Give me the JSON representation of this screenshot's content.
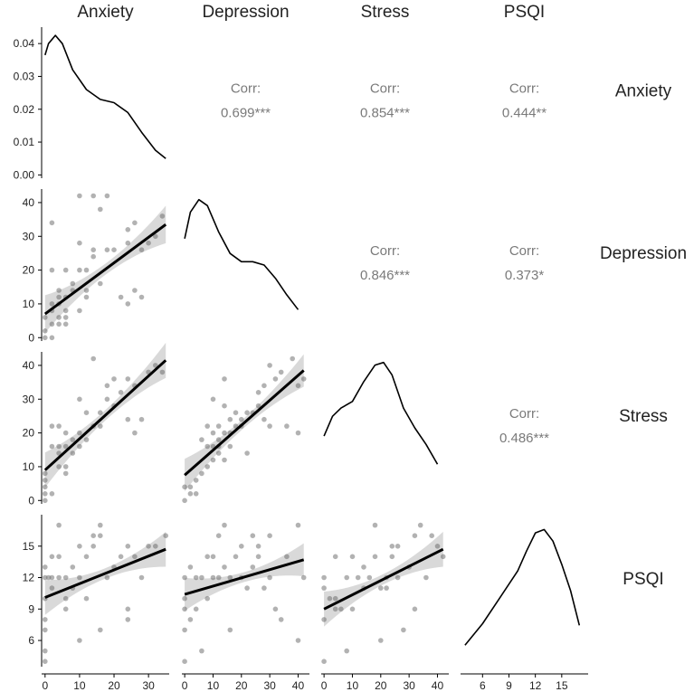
{
  "chart_data": {
    "type": "scatter-matrix",
    "variables": [
      "Anxiety",
      "Depression",
      "Stress",
      "PSQI"
    ],
    "axes": {
      "Anxiety": {
        "range": [
          -1,
          36
        ],
        "ticks": [
          0,
          10,
          20,
          30
        ]
      },
      "Depression": {
        "range": [
          -1,
          44
        ],
        "ticks": [
          0,
          10,
          20,
          30,
          40
        ],
        "tickLabels": [
          "0",
          "10",
          "20",
          "30",
          "40"
        ]
      },
      "Stress": {
        "range": [
          -1,
          44
        ],
        "ticks": [
          0,
          10,
          20,
          30,
          40
        ],
        "tickLabels": [
          "0",
          "10",
          "20",
          "30",
          "40"
        ]
      },
      "PSQI": {
        "range": [
          3.5,
          18
        ],
        "ticks": [
          6,
          9,
          12,
          15
        ],
        "tickLabels": [
          "6",
          "9",
          "12",
          "15"
        ]
      }
    },
    "density_axis": {
      "range": [
        -0.001,
        0.045
      ],
      "ticks": [
        0.0,
        0.01,
        0.02,
        0.03,
        0.04
      ],
      "tickLabels": [
        "0.00",
        "0.01",
        "0.02",
        "0.03",
        "0.04"
      ]
    },
    "densities": {
      "Anxiety": [
        [
          0,
          0.0365
        ],
        [
          1,
          0.04
        ],
        [
          3,
          0.0425
        ],
        [
          5,
          0.04
        ],
        [
          8,
          0.032
        ],
        [
          12,
          0.026
        ],
        [
          16,
          0.023
        ],
        [
          20,
          0.022
        ],
        [
          24,
          0.019
        ],
        [
          28,
          0.013
        ],
        [
          32,
          0.0075
        ],
        [
          35,
          0.005
        ]
      ],
      "Depression": [
        [
          0,
          0.03
        ],
        [
          2,
          0.038
        ],
        [
          5,
          0.0418
        ],
        [
          8,
          0.04
        ],
        [
          12,
          0.032
        ],
        [
          16,
          0.0255
        ],
        [
          20,
          0.023
        ],
        [
          24,
          0.023
        ],
        [
          28,
          0.022
        ],
        [
          32,
          0.018
        ],
        [
          36,
          0.013
        ],
        [
          40,
          0.0085
        ]
      ],
      "Stress": [
        [
          0,
          0.0195
        ],
        [
          3,
          0.0255
        ],
        [
          6,
          0.028
        ],
        [
          10,
          0.03
        ],
        [
          14,
          0.036
        ],
        [
          18,
          0.041
        ],
        [
          21,
          0.0418
        ],
        [
          24,
          0.038
        ],
        [
          28,
          0.028
        ],
        [
          32,
          0.022
        ],
        [
          36,
          0.017
        ],
        [
          40,
          0.011
        ]
      ],
      "PSQI": [
        [
          4,
          0.0055
        ],
        [
          6,
          0.012
        ],
        [
          8,
          0.02
        ],
        [
          10,
          0.028
        ],
        [
          11,
          0.034
        ],
        [
          12,
          0.0395
        ],
        [
          13,
          0.0405
        ],
        [
          14,
          0.037
        ],
        [
          15,
          0.03
        ],
        [
          16,
          0.022
        ],
        [
          17,
          0.0115
        ]
      ]
    },
    "correlations": [
      {
        "row": "Anxiety",
        "col": "Depression",
        "label": "Corr:",
        "value": "0.699***"
      },
      {
        "row": "Anxiety",
        "col": "Stress",
        "label": "Corr:",
        "value": "0.854***"
      },
      {
        "row": "Anxiety",
        "col": "PSQI",
        "label": "Corr:",
        "value": "0.444**"
      },
      {
        "row": "Depression",
        "col": "Stress",
        "label": "Corr:",
        "value": "0.846***"
      },
      {
        "row": "Depression",
        "col": "PSQI",
        "label": "Corr:",
        "value": "0.373*"
      },
      {
        "row": "Stress",
        "col": "PSQI",
        "label": "Corr:",
        "value": "0.486***"
      }
    ],
    "regressions": [
      {
        "row": "Depression",
        "col": "Anxiety",
        "x0": 0,
        "y0": 7,
        "x1": 35,
        "y1": 33.5,
        "se": 3
      },
      {
        "row": "Stress",
        "col": "Anxiety",
        "x0": 0,
        "y0": 9,
        "x1": 35,
        "y1": 41.5,
        "se": 2.8
      },
      {
        "row": "Stress",
        "col": "Depression",
        "x0": 0,
        "y0": 7.5,
        "x1": 42,
        "y1": 38.5,
        "se": 2.6
      },
      {
        "row": "PSQI",
        "col": "Anxiety",
        "x0": 0,
        "y0": 10.1,
        "x1": 35,
        "y1": 14.7,
        "se": 0.9
      },
      {
        "row": "PSQI",
        "col": "Depression",
        "x0": 0,
        "y0": 10.4,
        "x1": 42,
        "y1": 13.7,
        "se": 0.85
      },
      {
        "row": "PSQI",
        "col": "Stress",
        "x0": 0,
        "y0": 9.0,
        "x1": 42,
        "y1": 14.7,
        "se": 0.9
      }
    ],
    "points": {
      "Anxiety_Depression": [
        [
          0,
          0
        ],
        [
          0,
          2
        ],
        [
          0,
          6
        ],
        [
          2,
          0
        ],
        [
          2,
          4
        ],
        [
          2,
          8
        ],
        [
          2,
          10
        ],
        [
          2,
          34
        ],
        [
          4,
          4
        ],
        [
          4,
          6
        ],
        [
          4,
          10
        ],
        [
          4,
          12
        ],
        [
          4,
          14
        ],
        [
          6,
          4
        ],
        [
          6,
          6
        ],
        [
          6,
          8
        ],
        [
          6,
          12
        ],
        [
          8,
          14
        ],
        [
          8,
          16
        ],
        [
          10,
          8
        ],
        [
          10,
          20
        ],
        [
          10,
          28
        ],
        [
          10,
          42
        ],
        [
          12,
          12
        ],
        [
          12,
          14
        ],
        [
          14,
          24
        ],
        [
          14,
          26
        ],
        [
          14,
          42
        ],
        [
          16,
          16
        ],
        [
          16,
          38
        ],
        [
          18,
          26
        ],
        [
          18,
          42
        ],
        [
          20,
          26
        ],
        [
          22,
          12
        ],
        [
          24,
          10
        ],
        [
          24,
          28
        ],
        [
          24,
          32
        ],
        [
          26,
          14
        ],
        [
          26,
          34
        ],
        [
          28,
          26
        ],
        [
          28,
          12
        ],
        [
          30,
          28
        ],
        [
          32,
          30
        ],
        [
          34,
          36
        ],
        [
          6,
          20
        ],
        [
          2,
          20
        ],
        [
          12,
          20
        ]
      ],
      "Anxiety_Stress": [
        [
          0,
          0
        ],
        [
          0,
          2
        ],
        [
          0,
          4
        ],
        [
          0,
          6
        ],
        [
          0,
          8
        ],
        [
          2,
          2
        ],
        [
          2,
          16
        ],
        [
          2,
          22
        ],
        [
          4,
          10
        ],
        [
          4,
          14
        ],
        [
          4,
          16
        ],
        [
          4,
          22
        ],
        [
          6,
          8
        ],
        [
          6,
          10
        ],
        [
          6,
          16
        ],
        [
          6,
          20
        ],
        [
          8,
          14
        ],
        [
          8,
          18
        ],
        [
          10,
          16
        ],
        [
          10,
          20
        ],
        [
          12,
          18
        ],
        [
          12,
          26
        ],
        [
          14,
          22
        ],
        [
          14,
          42
        ],
        [
          16,
          22
        ],
        [
          16,
          26
        ],
        [
          18,
          30
        ],
        [
          18,
          34
        ],
        [
          20,
          28
        ],
        [
          22,
          32
        ],
        [
          24,
          24
        ],
        [
          24,
          36
        ],
        [
          26,
          20
        ],
        [
          26,
          34
        ],
        [
          28,
          24
        ],
        [
          30,
          38
        ],
        [
          32,
          40
        ],
        [
          34,
          38
        ],
        [
          10,
          30
        ],
        [
          20,
          36
        ]
      ],
      "Depression_Stress": [
        [
          0,
          0
        ],
        [
          0,
          4
        ],
        [
          2,
          2
        ],
        [
          2,
          4
        ],
        [
          4,
          2
        ],
        [
          4,
          6
        ],
        [
          6,
          8
        ],
        [
          6,
          18
        ],
        [
          8,
          10
        ],
        [
          8,
          16
        ],
        [
          8,
          22
        ],
        [
          10,
          12
        ],
        [
          10,
          16
        ],
        [
          10,
          20
        ],
        [
          10,
          30
        ],
        [
          12,
          14
        ],
        [
          12,
          16
        ],
        [
          12,
          18
        ],
        [
          12,
          22
        ],
        [
          14,
          20
        ],
        [
          14,
          28
        ],
        [
          14,
          36
        ],
        [
          16,
          16
        ],
        [
          16,
          20
        ],
        [
          16,
          24
        ],
        [
          18,
          22
        ],
        [
          18,
          26
        ],
        [
          20,
          22
        ],
        [
          20,
          24
        ],
        [
          22,
          26
        ],
        [
          24,
          26
        ],
        [
          26,
          28
        ],
        [
          26,
          32
        ],
        [
          28,
          24
        ],
        [
          28,
          34
        ],
        [
          30,
          22
        ],
        [
          30,
          40
        ],
        [
          32,
          36
        ],
        [
          34,
          38
        ],
        [
          36,
          22
        ],
        [
          38,
          42
        ],
        [
          40,
          20
        ],
        [
          40,
          34
        ],
        [
          42,
          36
        ],
        [
          14,
          12
        ],
        [
          22,
          14
        ]
      ],
      "Anxiety_PSQI": [
        [
          0,
          4
        ],
        [
          0,
          5
        ],
        [
          0,
          7
        ],
        [
          0,
          8
        ],
        [
          0,
          10
        ],
        [
          0,
          12
        ],
        [
          0,
          13
        ],
        [
          1,
          12
        ],
        [
          2,
          11
        ],
        [
          2,
          12
        ],
        [
          2,
          14
        ],
        [
          4,
          14
        ],
        [
          4,
          17
        ],
        [
          4,
          12
        ],
        [
          6,
          9
        ],
        [
          6,
          10
        ],
        [
          6,
          12
        ],
        [
          8,
          11
        ],
        [
          8,
          13
        ],
        [
          10,
          6
        ],
        [
          10,
          12
        ],
        [
          12,
          10
        ],
        [
          12,
          14
        ],
        [
          14,
          16
        ],
        [
          14,
          15
        ],
        [
          16,
          7
        ],
        [
          16,
          16
        ],
        [
          16,
          17
        ],
        [
          18,
          12
        ],
        [
          20,
          13
        ],
        [
          22,
          14
        ],
        [
          24,
          8
        ],
        [
          24,
          9
        ],
        [
          24,
          15
        ],
        [
          26,
          14
        ],
        [
          28,
          12
        ],
        [
          30,
          15
        ],
        [
          32,
          15
        ],
        [
          35,
          16
        ],
        [
          10,
          15
        ]
      ],
      "Depression_PSQI": [
        [
          0,
          4
        ],
        [
          0,
          7
        ],
        [
          0,
          9
        ],
        [
          0,
          10
        ],
        [
          0,
          12
        ],
        [
          2,
          8
        ],
        [
          2,
          13
        ],
        [
          4,
          9
        ],
        [
          4,
          12
        ],
        [
          6,
          5
        ],
        [
          6,
          12
        ],
        [
          8,
          10
        ],
        [
          8,
          14
        ],
        [
          10,
          12
        ],
        [
          10,
          14
        ],
        [
          12,
          12
        ],
        [
          12,
          16
        ],
        [
          14,
          17
        ],
        [
          14,
          13
        ],
        [
          16,
          7
        ],
        [
          16,
          12
        ],
        [
          18,
          14
        ],
        [
          20,
          15
        ],
        [
          22,
          11
        ],
        [
          24,
          13
        ],
        [
          24,
          16
        ],
        [
          26,
          15
        ],
        [
          26,
          14
        ],
        [
          28,
          11
        ],
        [
          30,
          16
        ],
        [
          32,
          9
        ],
        [
          34,
          8
        ],
        [
          36,
          14
        ],
        [
          40,
          6
        ],
        [
          40,
          17
        ],
        [
          42,
          12
        ],
        [
          20,
          12
        ],
        [
          30,
          12
        ]
      ],
      "Stress_PSQI": [
        [
          0,
          4
        ],
        [
          0,
          8
        ],
        [
          0,
          11
        ],
        [
          0,
          12
        ],
        [
          2,
          10
        ],
        [
          4,
          9
        ],
        [
          4,
          10
        ],
        [
          4,
          14
        ],
        [
          6,
          9
        ],
        [
          8,
          5
        ],
        [
          8,
          12
        ],
        [
          10,
          9
        ],
        [
          10,
          14
        ],
        [
          12,
          12
        ],
        [
          14,
          11
        ],
        [
          14,
          13
        ],
        [
          16,
          12
        ],
        [
          18,
          14
        ],
        [
          18,
          17
        ],
        [
          20,
          6
        ],
        [
          20,
          11
        ],
        [
          22,
          11
        ],
        [
          22,
          12
        ],
        [
          24,
          15
        ],
        [
          24,
          14
        ],
        [
          26,
          15
        ],
        [
          26,
          12
        ],
        [
          28,
          7
        ],
        [
          30,
          13
        ],
        [
          32,
          9
        ],
        [
          32,
          16
        ],
        [
          34,
          17
        ],
        [
          36,
          12
        ],
        [
          38,
          16
        ],
        [
          40,
          15
        ],
        [
          42,
          14
        ]
      ]
    }
  }
}
